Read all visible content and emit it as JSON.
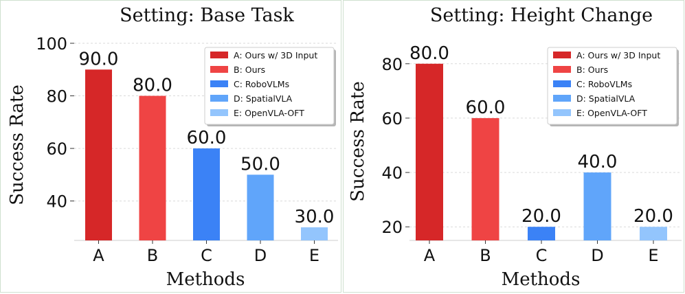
{
  "chart_data": [
    {
      "type": "bar",
      "title": "Setting: Base Task",
      "xlabel": "Methods",
      "ylabel": "Success Rate",
      "categories": [
        "A",
        "B",
        "C",
        "D",
        "E"
      ],
      "values": [
        90.0,
        80.0,
        60.0,
        50.0,
        30.0
      ],
      "value_labels": [
        "90.0",
        "80.0",
        "60.0",
        "50.0",
        "30.0"
      ],
      "colors": [
        "#d62728",
        "#ef4444",
        "#3b82f6",
        "#60a5fa",
        "#93c5fd"
      ],
      "ylim": [
        25,
        100
      ],
      "yticks": [
        40,
        60,
        80,
        100
      ],
      "grid": true,
      "legend_position": "top-right",
      "legend": [
        "A: Ours w/ 3D Input",
        "B: Ours",
        "C: RoboVLMs",
        "D: SpatialVLA",
        "E: OpenVLA-OFT"
      ]
    },
    {
      "type": "bar",
      "title": "Setting: Height Change",
      "xlabel": "Methods",
      "ylabel": "Success Rate",
      "categories": [
        "A",
        "B",
        "C",
        "D",
        "E"
      ],
      "values": [
        80.0,
        60.0,
        20.0,
        40.0,
        20.0
      ],
      "value_labels": [
        "80.0",
        "60.0",
        "20.0",
        "40.0",
        "20.0"
      ],
      "colors": [
        "#d62728",
        "#ef4444",
        "#3b82f6",
        "#60a5fa",
        "#93c5fd"
      ],
      "ylim": [
        15,
        85
      ],
      "yticks": [
        20,
        40,
        60,
        80
      ],
      "grid": true,
      "legend_position": "top-right",
      "legend": [
        "A: Ours w/ 3D Input",
        "B: Ours",
        "C: RoboVLMs",
        "D: SpatialVLA",
        "E: OpenVLA-OFT"
      ]
    }
  ]
}
